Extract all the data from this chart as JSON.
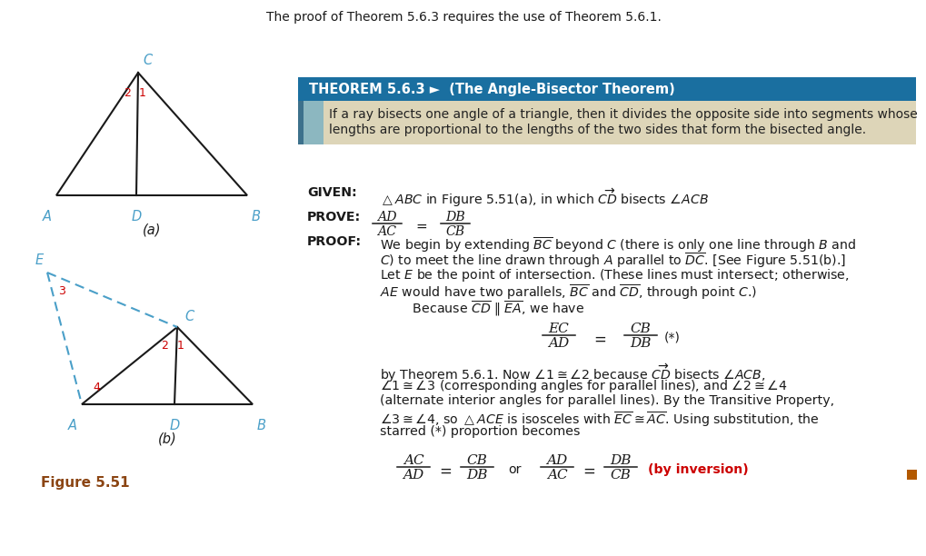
{
  "bg_color": "#ffffff",
  "intro_text": "The proof of Theorem 5.6.3 requires the use of Theorem 5.6.1.",
  "theorem_header_bg": "#1a6fa0",
  "theorem_header_text": "THEOREM 5.6.3 ►  (The Angle-Bisector Theorem)",
  "theorem_body_bg": "#ddd5b8",
  "theorem_body_line1": "If a ray bisects one angle of a triangle, then it divides the opposite side into segments whose",
  "theorem_body_line2": "lengths are proportional to the lengths of the two sides that form the bisected angle.",
  "given_label": "GIVEN:",
  "prove_label": "PROVE:",
  "proof_label": "PROOF:",
  "fig_label": "Figure 5.51",
  "triangle_color": "#1a1a1a",
  "dashed_color": "#4a9fc8",
  "label_color": "#4a9fc8",
  "angle_num_color": "#cc0000",
  "inversion_color": "#cc0000",
  "square_color": "#b35900",
  "text_color": "#1a1a1a",
  "fig51_label_color": "#8B4513"
}
